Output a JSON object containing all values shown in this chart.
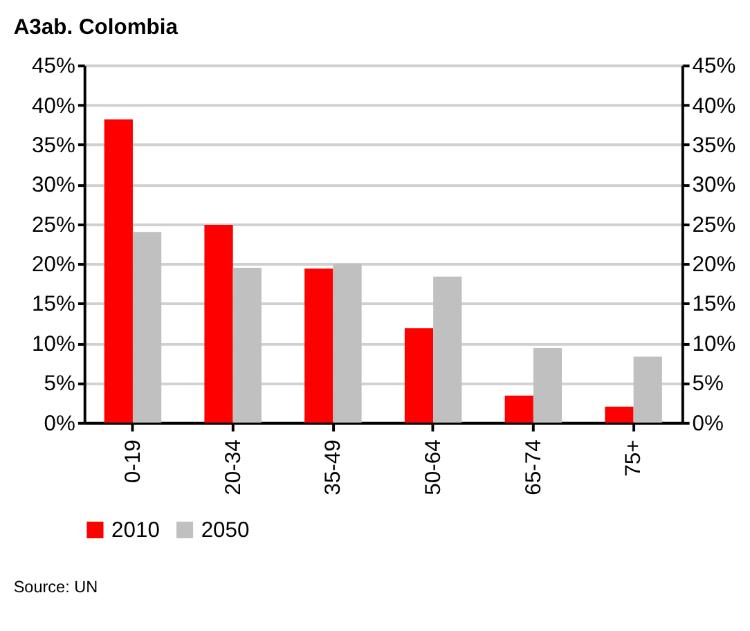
{
  "chart_data": {
    "type": "bar",
    "title": "A3ab. Colombia",
    "categories": [
      "0-19",
      "20-34",
      "35-49",
      "50-64",
      "65-74",
      "75+"
    ],
    "series": [
      {
        "name": "2010",
        "color": "#ff0000",
        "values": [
          38.2,
          24.9,
          19.4,
          11.9,
          3.4,
          2.0
        ]
      },
      {
        "name": "2050",
        "color": "#c0c0c0",
        "values": [
          24.0,
          19.5,
          20.0,
          18.4,
          9.4,
          8.3
        ]
      }
    ],
    "ylim": [
      0,
      45
    ],
    "yticks": [
      {
        "value": 0,
        "label": "0%"
      },
      {
        "value": 5,
        "label": "5%"
      },
      {
        "value": 10,
        "label": "10%"
      },
      {
        "value": 15,
        "label": "15%"
      },
      {
        "value": 20,
        "label": "20%"
      },
      {
        "value": 25,
        "label": "25%"
      },
      {
        "value": 30,
        "label": "30%"
      },
      {
        "value": 35,
        "label": "35%"
      },
      {
        "value": 40,
        "label": "40%"
      },
      {
        "value": 45,
        "label": "45%"
      }
    ],
    "y2lim": [
      0,
      45
    ],
    "y2ticks": [
      {
        "value": 0,
        "label": "0%"
      },
      {
        "value": 5,
        "label": "5%"
      },
      {
        "value": 10,
        "label": "10%"
      },
      {
        "value": 15,
        "label": "15%"
      },
      {
        "value": 20,
        "label": "20%"
      },
      {
        "value": 25,
        "label": "25%"
      },
      {
        "value": 30,
        "label": "30%"
      },
      {
        "value": 35,
        "label": "35%"
      },
      {
        "value": 40,
        "label": "40%"
      },
      {
        "value": 45,
        "label": "45%"
      }
    ],
    "grid": "y",
    "legend": "bottom",
    "annotations": [
      "Source: UN"
    ]
  }
}
